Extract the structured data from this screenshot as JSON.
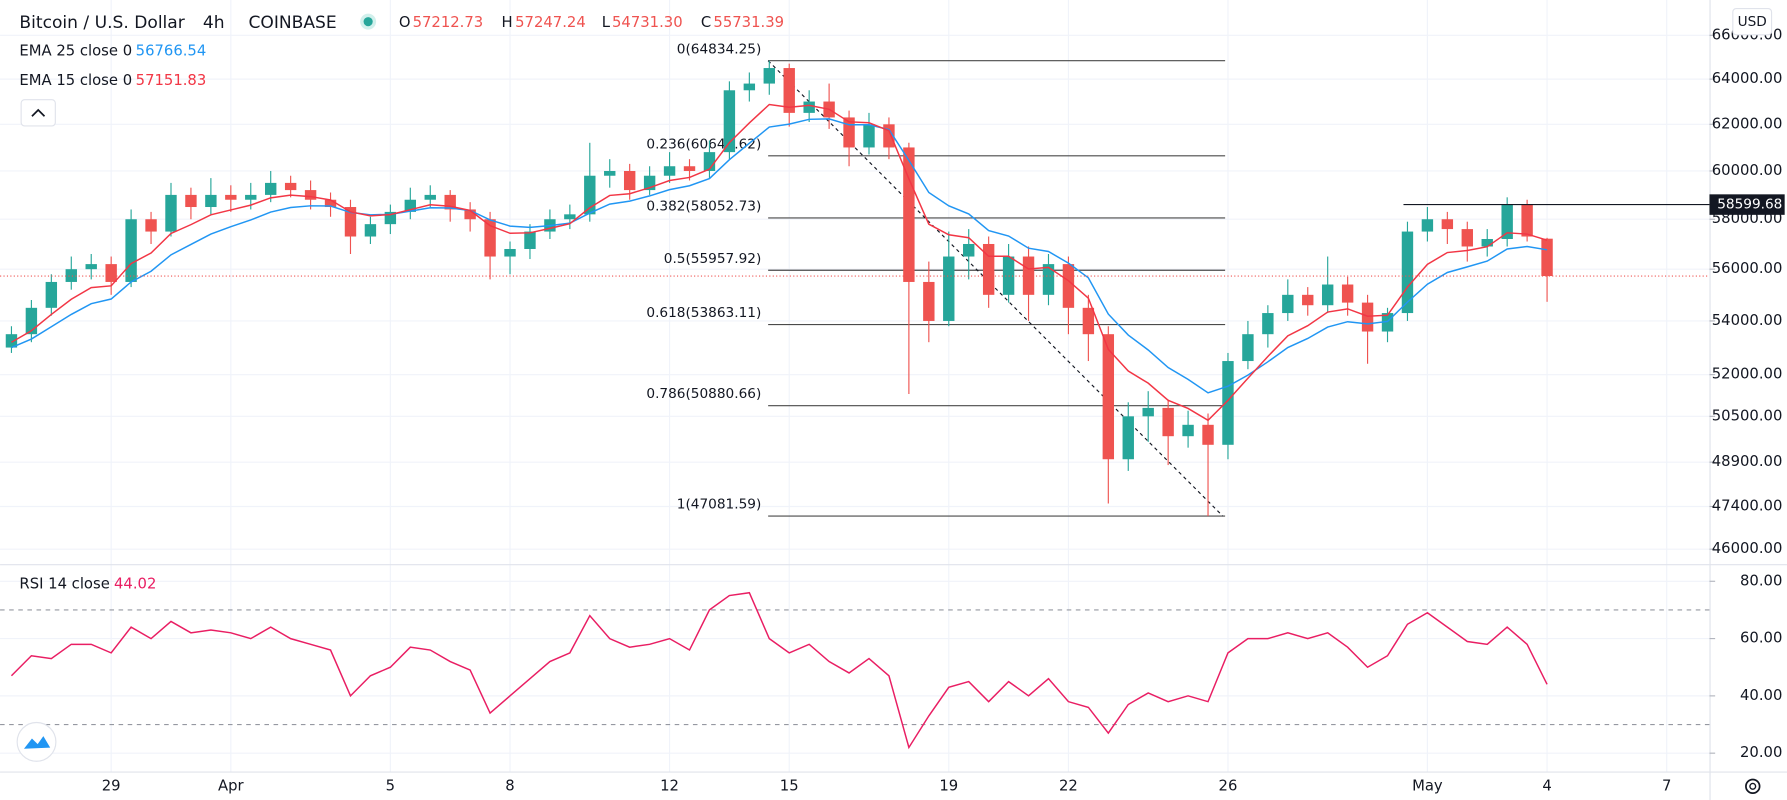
{
  "header": {
    "symbol": "Bitcoin / U.S. Dollar",
    "interval": "4h",
    "exchange": "COINBASE",
    "ohlc": [
      {
        "label": "O",
        "value": "57212.73"
      },
      {
        "label": "H",
        "value": "57247.24"
      },
      {
        "label": "L",
        "value": "54731.30"
      },
      {
        "label": "C",
        "value": "55731.39"
      }
    ],
    "currency": "USD"
  },
  "chart_data": [
    {
      "type": "candlestick",
      "up_color": "#26a69a",
      "down_color": "#ef5350",
      "grid": true,
      "log": true,
      "categories": [
        null,
        null,
        null,
        null,
        null,
        "29",
        null,
        null,
        null,
        null,
        null,
        "Apr",
        null,
        null,
        null,
        null,
        null,
        null,
        null,
        "5",
        null,
        null,
        null,
        null,
        null,
        "8",
        null,
        null,
        null,
        null,
        null,
        null,
        null,
        "12",
        null,
        null,
        null,
        null,
        null,
        "15",
        null,
        null,
        null,
        null,
        null,
        null,
        null,
        "19",
        null,
        null,
        null,
        null,
        null,
        "22",
        null,
        null,
        null,
        null,
        null,
        null,
        null,
        "26",
        null,
        null,
        null,
        null,
        null,
        null,
        null,
        null,
        null,
        "May",
        null,
        null,
        null,
        null,
        null,
        "4",
        null,
        null,
        null,
        null,
        null,
        "7",
        null
      ],
      "candles": [
        [
          53000,
          53800,
          52800,
          53500
        ],
        [
          53500,
          54800,
          53200,
          54500
        ],
        [
          54500,
          55800,
          54200,
          55500
        ],
        [
          55500,
          56500,
          55200,
          56000
        ],
        [
          56000,
          56600,
          55600,
          56200
        ],
        [
          56200,
          56500,
          55000,
          55500
        ],
        [
          55500,
          58400,
          55300,
          58000
        ],
        [
          58000,
          58300,
          57000,
          57500
        ],
        [
          57500,
          59500,
          57300,
          59000
        ],
        [
          59000,
          59300,
          58000,
          58500
        ],
        [
          58500,
          59700,
          58200,
          59000
        ],
        [
          59000,
          59400,
          58300,
          58800
        ],
        [
          58800,
          59500,
          58400,
          59000
        ],
        [
          59000,
          60000,
          58700,
          59500
        ],
        [
          59500,
          59800,
          58900,
          59200
        ],
        [
          59200,
          59600,
          58400,
          58800
        ],
        [
          58800,
          59100,
          58100,
          58500
        ],
        [
          58500,
          58800,
          56600,
          57300
        ],
        [
          57300,
          58100,
          57000,
          57800
        ],
        [
          57800,
          58600,
          57400,
          58300
        ],
        [
          58300,
          59300,
          58000,
          58800
        ],
        [
          58800,
          59400,
          58500,
          59000
        ],
        [
          59000,
          59200,
          57900,
          58400
        ],
        [
          58400,
          58700,
          57500,
          58000
        ],
        [
          58000,
          58300,
          55600,
          56500
        ],
        [
          56500,
          57100,
          55800,
          56800
        ],
        [
          56800,
          57800,
          56400,
          57500
        ],
        [
          57500,
          58400,
          57200,
          58000
        ],
        [
          58000,
          58600,
          57600,
          58200
        ],
        [
          58200,
          61200,
          57900,
          59800
        ],
        [
          59800,
          60500,
          59300,
          60000
        ],
        [
          60000,
          60300,
          58800,
          59200
        ],
        [
          59200,
          60200,
          59000,
          59800
        ],
        [
          59800,
          60800,
          59500,
          60200
        ],
        [
          60200,
          60500,
          59600,
          60000
        ],
        [
          60000,
          61300,
          59700,
          60800
        ],
        [
          60800,
          63900,
          60500,
          63500
        ],
        [
          63500,
          64300,
          63000,
          63800
        ],
        [
          63800,
          64834.25,
          63300,
          64500
        ],
        [
          64500,
          64700,
          61900,
          62500
        ],
        [
          62500,
          63500,
          62100,
          63000
        ],
        [
          63000,
          63800,
          61800,
          62300
        ],
        [
          62300,
          62600,
          60200,
          61000
        ],
        [
          61000,
          62500,
          60700,
          62000
        ],
        [
          62000,
          62300,
          60500,
          61000
        ],
        [
          61000,
          61200,
          51300,
          55500
        ],
        [
          55500,
          56300,
          53200,
          54000
        ],
        [
          54000,
          57500,
          53800,
          56500
        ],
        [
          56500,
          57600,
          55600,
          57000
        ],
        [
          57000,
          57300,
          54500,
          55000
        ],
        [
          55000,
          57000,
          54700,
          56500
        ],
        [
          56500,
          56900,
          54000,
          55000
        ],
        [
          55000,
          56600,
          54600,
          56200
        ],
        [
          56200,
          56500,
          53500,
          54500
        ],
        [
          54500,
          55000,
          52500,
          53500
        ],
        [
          53500,
          53800,
          47500,
          49000
        ],
        [
          49000,
          51000,
          48600,
          50500
        ],
        [
          50500,
          51400,
          49600,
          50800
        ],
        [
          50800,
          51100,
          48800,
          49800
        ],
        [
          49800,
          50700,
          49400,
          50200
        ],
        [
          50200,
          50600,
          47081.59,
          49500
        ],
        [
          49500,
          52800,
          49000,
          52500
        ],
        [
          52500,
          54000,
          52200,
          53500
        ],
        [
          53500,
          54600,
          53000,
          54300
        ],
        [
          54300,
          55600,
          54000,
          55000
        ],
        [
          55000,
          55300,
          54200,
          54600
        ],
        [
          54600,
          56500,
          54300,
          55400
        ],
        [
          55400,
          55700,
          54200,
          54700
        ],
        [
          54700,
          55000,
          52400,
          53600
        ],
        [
          53600,
          54500,
          53200,
          54300
        ],
        [
          54300,
          57900,
          54000,
          57500
        ],
        [
          57500,
          58500,
          57100,
          58000
        ],
        [
          58000,
          58300,
          57000,
          57600
        ],
        [
          57600,
          57900,
          56300,
          56900
        ],
        [
          56900,
          57600,
          56500,
          57200
        ],
        [
          57200,
          58900,
          56900,
          58600
        ],
        [
          58600,
          58800,
          57100,
          57300
        ],
        [
          57212.73,
          57247.24,
          54731.3,
          55731.39
        ],
        null,
        null,
        null,
        null,
        null,
        null,
        null
      ],
      "series": [
        {
          "name": "EMA 25 close 0",
          "color": "#2196f3",
          "legend_value": 56766.54,
          "values": [
            53000,
            53320,
            53780,
            54250,
            54660,
            54840,
            55500,
            55920,
            56570,
            56980,
            57400,
            57700,
            57970,
            58290,
            58480,
            58550,
            58540,
            58280,
            58180,
            58200,
            58330,
            58470,
            58460,
            58360,
            57970,
            57720,
            57670,
            57740,
            57840,
            58250,
            58620,
            58740,
            58960,
            59220,
            59380,
            59680,
            60480,
            61180,
            61880,
            62010,
            62220,
            62240,
            61980,
            61980,
            61770,
            60450,
            59100,
            58550,
            58220,
            57540,
            57320,
            56830,
            56700,
            56240,
            55660,
            54260,
            53470,
            52910,
            52260,
            51830,
            51340,
            51580,
            51980,
            52470,
            53000,
            53340,
            53770,
            53970,
            53890,
            53980,
            54720,
            55410,
            55870,
            56090,
            56320,
            56800,
            56900,
            56766.54,
            null,
            null,
            null,
            null,
            null,
            null,
            null
          ]
        },
        {
          "name": "EMA 15 close 0",
          "color": "#f23645",
          "legend_value": 57151.83,
          "values": [
            53200,
            53630,
            54250,
            54830,
            55280,
            55350,
            56220,
            56640,
            57420,
            57780,
            58180,
            58380,
            58580,
            58880,
            58990,
            58930,
            58790,
            58300,
            58140,
            58190,
            58390,
            58590,
            58530,
            58360,
            57740,
            57430,
            57450,
            57630,
            57820,
            58470,
            58980,
            59050,
            59300,
            59600,
            59730,
            60080,
            61210,
            62060,
            62870,
            62750,
            62830,
            62660,
            62110,
            62070,
            61720,
            59670,
            57800,
            57370,
            57250,
            56510,
            56510,
            56010,
            56070,
            55550,
            54870,
            52930,
            52130,
            51690,
            51070,
            50780,
            50360,
            51070,
            51870,
            52670,
            53440,
            53820,
            54340,
            54460,
            54180,
            54220,
            55300,
            56190,
            56660,
            56740,
            56890,
            57450,
            57400,
            57151.83,
            null,
            null,
            null,
            null,
            null,
            null,
            null
          ]
        }
      ],
      "ylim": [
        45520,
        67550
      ],
      "yticks": [
        {
          "value": 46000,
          "label": "46000.00"
        },
        {
          "value": 47400,
          "label": "47400.00"
        },
        {
          "value": 48900,
          "label": "48900.00"
        },
        {
          "value": 50500,
          "label": "50500.00"
        },
        {
          "value": 52000,
          "label": "52000.00"
        },
        {
          "value": 54000,
          "label": "54000.00"
        },
        {
          "value": 56000,
          "label": "56000.00"
        },
        {
          "value": 58000,
          "label": "58000.00"
        },
        {
          "value": 60000,
          "label": "60000.00"
        },
        {
          "value": 62000,
          "label": "62000.00"
        },
        {
          "value": 64000,
          "label": "64000.00"
        },
        {
          "value": 66000,
          "label": "66000.00"
        }
      ],
      "fib": [
        {
          "value": 64834.25,
          "label": "0(64834.25)"
        },
        {
          "value": 60644.62,
          "label": "0.236(60644.62)"
        },
        {
          "value": 58052.73,
          "label": "0.382(58052.73)"
        },
        {
          "value": 55957.92,
          "label": "0.5(55957.92)"
        },
        {
          "value": 53863.11,
          "label": "0.618(53863.11)"
        },
        {
          "value": 50880.66,
          "label": "0.786(50880.66)"
        },
        {
          "value": 47081.59,
          "label": "1(47081.59)"
        }
      ],
      "hline": 58599.68
    },
    {
      "type": "line",
      "grid": true,
      "series": [
        {
          "name": "RSI 14 close",
          "color": "#e91e63",
          "legend_value": 44.02,
          "values": [
            47,
            54,
            53,
            58,
            58,
            55,
            64,
            60,
            66,
            62,
            63,
            62,
            60,
            64,
            60,
            58,
            56,
            40,
            47,
            50,
            57,
            56,
            52,
            49,
            34,
            40,
            46,
            52,
            55,
            68,
            60,
            57,
            58,
            60,
            56,
            70,
            75,
            76,
            60,
            55,
            58,
            52,
            48,
            53,
            47,
            22,
            33,
            43,
            45,
            38,
            45,
            40,
            46,
            38,
            36,
            27,
            37,
            41,
            38,
            40,
            38,
            55,
            60,
            60,
            62,
            60,
            62,
            57,
            50,
            54,
            65,
            69,
            64,
            59,
            58,
            64,
            58,
            44.02,
            null,
            null,
            null,
            null,
            null,
            null,
            null
          ]
        }
      ],
      "bands": [
        30,
        70
      ],
      "ylim": [
        13.6,
        85.2
      ],
      "yticks": [
        {
          "value": 20,
          "label": "20.00"
        },
        {
          "value": 40,
          "label": "40.00"
        },
        {
          "value": 60,
          "label": "60.00"
        },
        {
          "value": 80,
          "label": "80.00"
        }
      ]
    }
  ]
}
